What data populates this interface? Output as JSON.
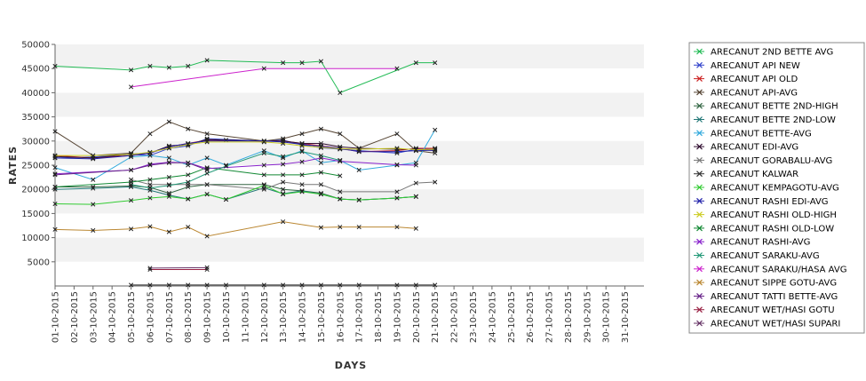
{
  "chart_data": {
    "type": "line",
    "title": "",
    "xlabel": "DAYS",
    "ylabel": "RATES",
    "ylim": [
      0,
      50000
    ],
    "yticks": [
      "50000",
      "45000",
      "40000",
      "35000",
      "30000",
      "25000",
      "20000",
      "15000",
      "10000",
      "5000"
    ],
    "x": [
      "01-10-2015",
      "02-10-2015",
      "03-10-2015",
      "04-10-2015",
      "05-10-2015",
      "06-10-2015",
      "07-10-2015",
      "08-10-2015",
      "09-10-2015",
      "10-10-2015",
      "11-10-2015",
      "12-10-2015",
      "13-10-2015",
      "14-10-2015",
      "15-10-2015",
      "16-10-2015",
      "17-10-2015",
      "18-10-2015",
      "19-10-2015",
      "20-10-2015",
      "21-10-2015",
      "22-10-2015",
      "23-10-2015",
      "24-10-2015",
      "25-10-2015",
      "26-10-2015",
      "27-10-2015",
      "28-10-2015",
      "29-10-2015",
      "30-10-2015",
      "31-10-2015"
    ],
    "grid": "alternating horizontal bands",
    "legend_position": "right",
    "series": [
      {
        "name": "ARECANUT 2ND BETTE AVG",
        "color": "#22bb55",
        "points": [
          [
            1,
            45500
          ],
          [
            5,
            44700
          ],
          [
            6,
            45500
          ],
          [
            7,
            45200
          ],
          [
            8,
            45500
          ],
          [
            9,
            46700
          ],
          [
            13,
            46200
          ],
          [
            14,
            46200
          ],
          [
            15,
            46500
          ],
          [
            16,
            40000
          ],
          [
            20,
            46200
          ],
          [
            21,
            46200
          ]
        ]
      },
      {
        "name": "ARECANUT API NEW",
        "color": "#3344cc",
        "points": [
          [
            1,
            26500
          ],
          [
            3,
            26700
          ],
          [
            5,
            27200
          ],
          [
            6,
            27000
          ],
          [
            7,
            28500
          ],
          [
            8,
            29000
          ],
          [
            9,
            30500
          ],
          [
            12,
            30000
          ],
          [
            13,
            30200
          ],
          [
            14,
            29200
          ],
          [
            15,
            28600
          ],
          [
            16,
            28300
          ],
          [
            17,
            28000
          ],
          [
            19,
            27500
          ],
          [
            20,
            28300
          ],
          [
            21,
            28400
          ]
        ]
      },
      {
        "name": "ARECANUT API OLD",
        "color": "#cc2222",
        "points": [
          [
            1,
            27000
          ],
          [
            3,
            26500
          ],
          [
            5,
            27000
          ],
          [
            6,
            27500
          ],
          [
            7,
            28800
          ],
          [
            8,
            29500
          ],
          [
            9,
            30200
          ],
          [
            12,
            30000
          ],
          [
            13,
            30000
          ],
          [
            14,
            29500
          ],
          [
            15,
            29000
          ],
          [
            16,
            28500
          ],
          [
            17,
            27800
          ],
          [
            19,
            28000
          ],
          [
            20,
            28500
          ],
          [
            21,
            28500
          ]
        ]
      },
      {
        "name": "ARECANUT API-AVG",
        "color": "#554433",
        "points": [
          [
            1,
            32000
          ],
          [
            3,
            27000
          ],
          [
            5,
            27500
          ],
          [
            6,
            31500
          ],
          [
            7,
            34000
          ],
          [
            8,
            32500
          ],
          [
            9,
            31500
          ],
          [
            12,
            30000
          ],
          [
            13,
            30500
          ],
          [
            14,
            31500
          ],
          [
            15,
            32500
          ],
          [
            16,
            31500
          ],
          [
            17,
            28500
          ],
          [
            19,
            31500
          ],
          [
            20,
            28000
          ],
          [
            21,
            27500
          ]
        ]
      },
      {
        "name": "ARECANUT BETTE 2ND-HIGH",
        "color": "#336644",
        "points": [
          [
            1,
            20500
          ],
          [
            3,
            20500
          ],
          [
            5,
            20700
          ],
          [
            6,
            20400
          ],
          [
            7,
            19200
          ],
          [
            8,
            20500
          ],
          [
            9,
            21000
          ],
          [
            12,
            21000
          ],
          [
            13,
            20000
          ],
          [
            14,
            19700
          ],
          [
            15,
            19200
          ],
          [
            16,
            18000
          ],
          [
            17,
            17800
          ],
          [
            19,
            18200
          ],
          [
            20,
            18500
          ]
        ]
      },
      {
        "name": "ARECANUT BETTE 2ND-LOW",
        "color": "#227777",
        "points": [
          [
            1,
            20000
          ],
          [
            3,
            20200
          ],
          [
            5,
            20500
          ],
          [
            6,
            19800
          ],
          [
            7,
            18800
          ],
          [
            8,
            18000
          ],
          [
            9,
            19000
          ],
          [
            10,
            17900
          ],
          [
            12,
            20300
          ],
          [
            13,
            19100
          ],
          [
            14,
            19700
          ],
          [
            15,
            19000
          ],
          [
            16,
            18000
          ],
          [
            17,
            17800
          ],
          [
            19,
            18200
          ],
          [
            20,
            18500
          ]
        ]
      },
      {
        "name": "ARECANUT BETTE-AVG",
        "color": "#33aadd",
        "points": [
          [
            1,
            24500
          ],
          [
            3,
            22000
          ],
          [
            5,
            26700
          ],
          [
            6,
            27000
          ],
          [
            7,
            26500
          ],
          [
            8,
            25000
          ],
          [
            9,
            26500
          ],
          [
            10,
            25000
          ],
          [
            12,
            28000
          ],
          [
            13,
            26500
          ],
          [
            14,
            28000
          ],
          [
            15,
            25500
          ],
          [
            16,
            26000
          ],
          [
            17,
            24000
          ],
          [
            19,
            25000
          ],
          [
            20,
            25500
          ],
          [
            21,
            32300
          ]
        ]
      },
      {
        "name": "ARECANUT EDI-AVG",
        "color": "#331133",
        "points": [
          [
            1,
            26800
          ],
          [
            3,
            26500
          ],
          [
            5,
            27300
          ],
          [
            6,
            27500
          ],
          [
            7,
            29000
          ],
          [
            8,
            29300
          ],
          [
            9,
            30300
          ],
          [
            10,
            30200
          ],
          [
            12,
            30000
          ],
          [
            13,
            30000
          ],
          [
            14,
            29500
          ],
          [
            15,
            29500
          ],
          [
            16,
            28800
          ],
          [
            17,
            28500
          ],
          [
            19,
            28300
          ],
          [
            20,
            28300
          ],
          [
            21,
            28000
          ]
        ]
      },
      {
        "name": "ARECANUT GORABALU-AVG",
        "color": "#777777",
        "points": [
          [
            5,
            22000
          ],
          [
            6,
            21000
          ],
          [
            7,
            21000
          ],
          [
            8,
            21000
          ],
          [
            9,
            21000
          ],
          [
            12,
            20000
          ],
          [
            13,
            21500
          ],
          [
            14,
            21000
          ],
          [
            15,
            21000
          ],
          [
            16,
            19500
          ],
          [
            19,
            19500
          ],
          [
            20,
            21300
          ],
          [
            21,
            21500
          ]
        ]
      },
      {
        "name": "ARECANUT KALWAR",
        "color": "#333333",
        "points": [
          [
            5,
            200
          ],
          [
            6,
            200
          ],
          [
            7,
            200
          ],
          [
            8,
            200
          ],
          [
            9,
            200
          ],
          [
            10,
            200
          ],
          [
            12,
            200
          ],
          [
            13,
            200
          ],
          [
            14,
            200
          ],
          [
            15,
            200
          ],
          [
            16,
            200
          ],
          [
            17,
            200
          ],
          [
            19,
            200
          ],
          [
            20,
            200
          ],
          [
            21,
            200
          ]
        ]
      },
      {
        "name": "ARECANUT KEMPAGOTU-AVG",
        "color": "#33cc33",
        "points": [
          [
            1,
            17000
          ],
          [
            3,
            16900
          ],
          [
            5,
            17700
          ],
          [
            6,
            18200
          ],
          [
            7,
            18500
          ],
          [
            8,
            18000
          ],
          [
            9,
            19000
          ],
          [
            10,
            17900
          ],
          [
            12,
            20800
          ],
          [
            13,
            19000
          ],
          [
            14,
            19500
          ],
          [
            15,
            19000
          ],
          [
            16,
            18000
          ],
          [
            17,
            17800
          ],
          [
            19,
            18200
          ],
          [
            20,
            18500
          ]
        ]
      },
      {
        "name": "ARECANUT RASHI EDI-AVG",
        "color": "#2222aa",
        "points": [
          [
            1,
            26500
          ],
          [
            3,
            26300
          ],
          [
            5,
            27000
          ],
          [
            6,
            27500
          ],
          [
            7,
            28800
          ],
          [
            8,
            29500
          ],
          [
            9,
            30000
          ],
          [
            12,
            30000
          ],
          [
            13,
            29800
          ],
          [
            14,
            29300
          ],
          [
            15,
            28900
          ],
          [
            16,
            28500
          ],
          [
            17,
            27800
          ],
          [
            19,
            27800
          ],
          [
            20,
            28000
          ],
          [
            21,
            28100
          ]
        ]
      },
      {
        "name": "ARECANUT RASHI OLD-HIGH",
        "color": "#cccc22",
        "points": [
          [
            1,
            27000
          ],
          [
            3,
            27000
          ],
          [
            5,
            27200
          ],
          [
            6,
            27700
          ],
          [
            7,
            28500
          ],
          [
            8,
            29300
          ],
          [
            9,
            29800
          ],
          [
            12,
            29800
          ],
          [
            13,
            29500
          ],
          [
            14,
            29000
          ],
          [
            15,
            28700
          ],
          [
            16,
            28400
          ],
          [
            17,
            28300
          ],
          [
            19,
            28500
          ],
          [
            20,
            28200
          ],
          [
            21,
            28300
          ]
        ]
      },
      {
        "name": "ARECANUT RASHI OLD-LOW",
        "color": "#118833",
        "points": [
          [
            1,
            20500
          ],
          [
            5,
            21500
          ],
          [
            6,
            22000
          ],
          [
            7,
            22500
          ],
          [
            8,
            23000
          ],
          [
            9,
            24500
          ],
          [
            12,
            23000
          ],
          [
            13,
            23000
          ],
          [
            14,
            23000
          ],
          [
            15,
            23500
          ],
          [
            16,
            22800
          ]
        ]
      },
      {
        "name": "ARECANUT RASHI-AVG",
        "color": "#8822cc",
        "points": [
          [
            1,
            23200
          ],
          [
            5,
            24000
          ],
          [
            6,
            25200
          ],
          [
            7,
            25600
          ],
          [
            8,
            25500
          ],
          [
            9,
            24300
          ],
          [
            12,
            25000
          ],
          [
            13,
            25200
          ],
          [
            14,
            25700
          ],
          [
            15,
            26500
          ],
          [
            16,
            25800
          ],
          [
            19,
            25100
          ],
          [
            20,
            25000
          ]
        ]
      },
      {
        "name": "ARECANUT SARAKU-AVG",
        "color": "#229977",
        "points": [
          [
            5,
            21000
          ],
          [
            6,
            20300
          ],
          [
            7,
            20800
          ],
          [
            8,
            21500
          ],
          [
            9,
            23300
          ],
          [
            10,
            24800
          ],
          [
            12,
            27500
          ],
          [
            13,
            26800
          ],
          [
            14,
            27800
          ],
          [
            15,
            27000
          ],
          [
            16,
            26000
          ]
        ]
      },
      {
        "name": "ARECANUT SARAKU/HASA AVG",
        "color": "#cc22cc",
        "points": [
          [
            5,
            41200
          ],
          [
            12,
            45000
          ],
          [
            19,
            45000
          ]
        ]
      },
      {
        "name": "ARECANUT SIPPE GOTU-AVG",
        "color": "#bb8833",
        "points": [
          [
            1,
            11700
          ],
          [
            3,
            11500
          ],
          [
            5,
            11800
          ],
          [
            6,
            12300
          ],
          [
            7,
            11200
          ],
          [
            8,
            12200
          ],
          [
            9,
            10300
          ],
          [
            13,
            13300
          ],
          [
            15,
            12100
          ],
          [
            16,
            12200
          ],
          [
            17,
            12200
          ],
          [
            19,
            12200
          ],
          [
            20,
            11900
          ]
        ]
      },
      {
        "name": "ARECANUT TATTI BETTE-AVG",
        "color": "#662288",
        "points": [
          [
            1,
            23000
          ],
          [
            5,
            24000
          ],
          [
            6,
            25000
          ],
          [
            7,
            25500
          ],
          [
            8,
            25500
          ],
          [
            9,
            24000
          ]
        ]
      },
      {
        "name": "ARECANUT WET/HASI GOTU",
        "color": "#992244",
        "points": [
          [
            6,
            3400
          ],
          [
            9,
            3400
          ]
        ]
      },
      {
        "name": "ARECANUT WET/HASI SUPARI",
        "color": "#663366",
        "points": [
          [
            6,
            3700
          ],
          [
            9,
            3800
          ]
        ]
      }
    ]
  }
}
